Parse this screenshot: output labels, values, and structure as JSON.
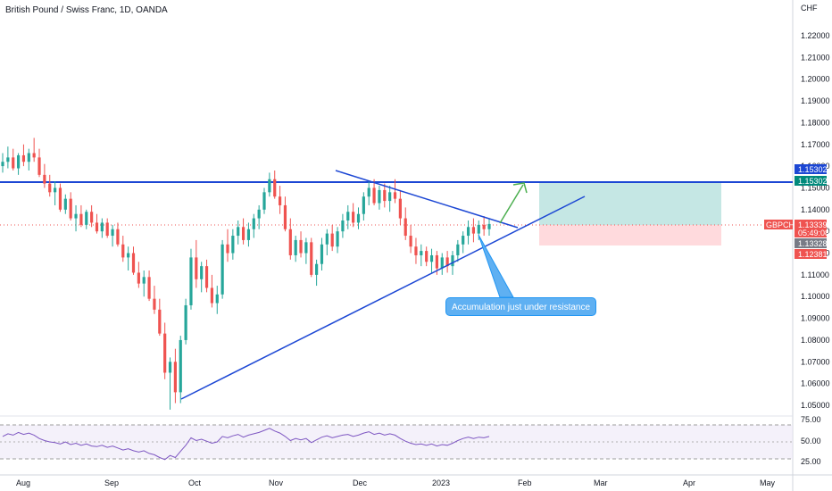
{
  "chart_title": "British Pound / Swiss Franc, 1D, OANDA",
  "currency": "CHF",
  "price_axis": [
    "1.22000",
    "1.21000",
    "1.20000",
    "1.19000",
    "1.18000",
    "1.17000",
    "1.16000",
    "1.15000",
    "1.14000",
    "1.13000",
    "1.12000",
    "1.11000",
    "1.10000",
    "1.09000",
    "1.08000",
    "1.07000",
    "1.06000",
    "1.05000"
  ],
  "time_axis": [
    "Aug",
    "Sep",
    "Oct",
    "Nov",
    "Dec",
    "2023",
    "Feb",
    "Mar",
    "Apr",
    "May"
  ],
  "rsi_axis": [
    "75.00",
    "50.00",
    "25.00"
  ],
  "tags": {
    "resistance_1": "1.15302",
    "resistance_2": "1.15302",
    "symbol": "GBPCHF",
    "last_price": "1.13339",
    "countdown": "05:49:08",
    "grey_price": "1.13328",
    "stop_price": "1.12381"
  },
  "annotation": "Accumulation just under resistance",
  "colors": {
    "up": "#26a69a",
    "down": "#ef5350",
    "line": "#1c47d4",
    "rsi": "#7e57c2"
  },
  "chart_data": {
    "type": "candlestick",
    "symbol": "GBPCHF",
    "interval": "1D",
    "y_range": [
      1.045,
      1.225
    ],
    "resistance": 1.15302,
    "last_price": 1.13339,
    "candles": [
      [
        1.16,
        1.166,
        1.157,
        1.162
      ],
      [
        1.162,
        1.169,
        1.159,
        1.164
      ],
      [
        1.164,
        1.168,
        1.158,
        1.159
      ],
      [
        1.159,
        1.166,
        1.156,
        1.165
      ],
      [
        1.165,
        1.17,
        1.16,
        1.162
      ],
      [
        1.162,
        1.168,
        1.158,
        1.166
      ],
      [
        1.166,
        1.173,
        1.162,
        1.164
      ],
      [
        1.164,
        1.168,
        1.155,
        1.156
      ],
      [
        1.156,
        1.161,
        1.15,
        1.152
      ],
      [
        1.152,
        1.156,
        1.146,
        1.148
      ],
      [
        1.148,
        1.153,
        1.142,
        1.15
      ],
      [
        1.15,
        1.152,
        1.139,
        1.14
      ],
      [
        1.14,
        1.147,
        1.138,
        1.145
      ],
      [
        1.145,
        1.148,
        1.135,
        1.136
      ],
      [
        1.136,
        1.142,
        1.13,
        1.138
      ],
      [
        1.138,
        1.142,
        1.132,
        1.133
      ],
      [
        1.133,
        1.14,
        1.131,
        1.139
      ],
      [
        1.139,
        1.142,
        1.132,
        1.134
      ],
      [
        1.134,
        1.138,
        1.129,
        1.13
      ],
      [
        1.13,
        1.136,
        1.127,
        1.134
      ],
      [
        1.134,
        1.136,
        1.127,
        1.128
      ],
      [
        1.128,
        1.133,
        1.123,
        1.131
      ],
      [
        1.131,
        1.134,
        1.123,
        1.124
      ],
      [
        1.124,
        1.128,
        1.116,
        1.118
      ],
      [
        1.118,
        1.123,
        1.112,
        1.12
      ],
      [
        1.12,
        1.123,
        1.11,
        1.111
      ],
      [
        1.111,
        1.116,
        1.104,
        1.106
      ],
      [
        1.106,
        1.112,
        1.1,
        1.109
      ],
      [
        1.109,
        1.112,
        1.098,
        1.099
      ],
      [
        1.099,
        1.105,
        1.092,
        1.094
      ],
      [
        1.094,
        1.099,
        1.082,
        1.083
      ],
      [
        1.083,
        1.088,
        1.062,
        1.065
      ],
      [
        1.065,
        1.072,
        1.048,
        1.07
      ],
      [
        1.07,
        1.076,
        1.051,
        1.056
      ],
      [
        1.056,
        1.082,
        1.051,
        1.08
      ],
      [
        1.08,
        1.099,
        1.078,
        1.096
      ],
      [
        1.096,
        1.122,
        1.094,
        1.118
      ],
      [
        1.118,
        1.126,
        1.104,
        1.108
      ],
      [
        1.108,
        1.116,
        1.102,
        1.114
      ],
      [
        1.114,
        1.117,
        1.102,
        1.104
      ],
      [
        1.104,
        1.11,
        1.095,
        1.097
      ],
      [
        1.097,
        1.105,
        1.092,
        1.101
      ],
      [
        1.101,
        1.126,
        1.099,
        1.124
      ],
      [
        1.124,
        1.131,
        1.116,
        1.12
      ],
      [
        1.12,
        1.131,
        1.117,
        1.128
      ],
      [
        1.128,
        1.135,
        1.124,
        1.132
      ],
      [
        1.132,
        1.136,
        1.124,
        1.126
      ],
      [
        1.126,
        1.134,
        1.123,
        1.131
      ],
      [
        1.131,
        1.138,
        1.127,
        1.136
      ],
      [
        1.136,
        1.142,
        1.131,
        1.14
      ],
      [
        1.14,
        1.15,
        1.138,
        1.148
      ],
      [
        1.148,
        1.157,
        1.146,
        1.154
      ],
      [
        1.154,
        1.158,
        1.145,
        1.146
      ],
      [
        1.146,
        1.151,
        1.138,
        1.142
      ],
      [
        1.142,
        1.146,
        1.13,
        1.131
      ],
      [
        1.131,
        1.136,
        1.117,
        1.119
      ],
      [
        1.119,
        1.128,
        1.116,
        1.126
      ],
      [
        1.126,
        1.13,
        1.118,
        1.12
      ],
      [
        1.12,
        1.127,
        1.115,
        1.125
      ],
      [
        1.125,
        1.127,
        1.109,
        1.11
      ],
      [
        1.11,
        1.117,
        1.105,
        1.115
      ],
      [
        1.115,
        1.127,
        1.112,
        1.124
      ],
      [
        1.124,
        1.131,
        1.119,
        1.129
      ],
      [
        1.129,
        1.133,
        1.121,
        1.123
      ],
      [
        1.123,
        1.132,
        1.12,
        1.13
      ],
      [
        1.13,
        1.138,
        1.127,
        1.135
      ],
      [
        1.135,
        1.142,
        1.131,
        1.139
      ],
      [
        1.139,
        1.143,
        1.132,
        1.134
      ],
      [
        1.134,
        1.141,
        1.131,
        1.138
      ],
      [
        1.138,
        1.148,
        1.135,
        1.146
      ],
      [
        1.146,
        1.153,
        1.142,
        1.15
      ],
      [
        1.15,
        1.154,
        1.142,
        1.143
      ],
      [
        1.143,
        1.151,
        1.14,
        1.149
      ],
      [
        1.149,
        1.152,
        1.141,
        1.144
      ],
      [
        1.144,
        1.151,
        1.139,
        1.148
      ],
      [
        1.148,
        1.154,
        1.143,
        1.145
      ],
      [
        1.145,
        1.149,
        1.133,
        1.136
      ],
      [
        1.136,
        1.141,
        1.126,
        1.128
      ],
      [
        1.128,
        1.133,
        1.12,
        1.123
      ],
      [
        1.123,
        1.127,
        1.115,
        1.119
      ],
      [
        1.119,
        1.124,
        1.114,
        1.121
      ],
      [
        1.121,
        1.123,
        1.114,
        1.116
      ],
      [
        1.116,
        1.122,
        1.111,
        1.119
      ],
      [
        1.119,
        1.121,
        1.11,
        1.113
      ],
      [
        1.113,
        1.12,
        1.11,
        1.118
      ],
      [
        1.118,
        1.121,
        1.111,
        1.114
      ],
      [
        1.114,
        1.121,
        1.11,
        1.119
      ],
      [
        1.119,
        1.126,
        1.116,
        1.124
      ],
      [
        1.124,
        1.13,
        1.12,
        1.128
      ],
      [
        1.128,
        1.135,
        1.124,
        1.132
      ],
      [
        1.132,
        1.136,
        1.125,
        1.129
      ],
      [
        1.129,
        1.135,
        1.126,
        1.133
      ],
      [
        1.133,
        1.137,
        1.128,
        1.131
      ],
      [
        1.131,
        1.136,
        1.128,
        1.1334
      ]
    ],
    "rsi": [
      58,
      62,
      60,
      64,
      61,
      63,
      60,
      55,
      52,
      50,
      49,
      47,
      50,
      46,
      48,
      45,
      47,
      44,
      43,
      45,
      42,
      44,
      41,
      38,
      40,
      37,
      35,
      37,
      33,
      31,
      27,
      24,
      30,
      27,
      36,
      45,
      56,
      52,
      54,
      51,
      48,
      50,
      58,
      56,
      59,
      61,
      57,
      60,
      62,
      64,
      67,
      70,
      66,
      63,
      58,
      52,
      55,
      53,
      55,
      49,
      53,
      57,
      59,
      56,
      58,
      60,
      61,
      58,
      60,
      63,
      65,
      61,
      63,
      60,
      62,
      60,
      55,
      51,
      48,
      46,
      47,
      45,
      47,
      44,
      46,
      45,
      48,
      52,
      55,
      57,
      55,
      57,
      56,
      58
    ],
    "rsi_range": [
      0,
      100
    ]
  }
}
